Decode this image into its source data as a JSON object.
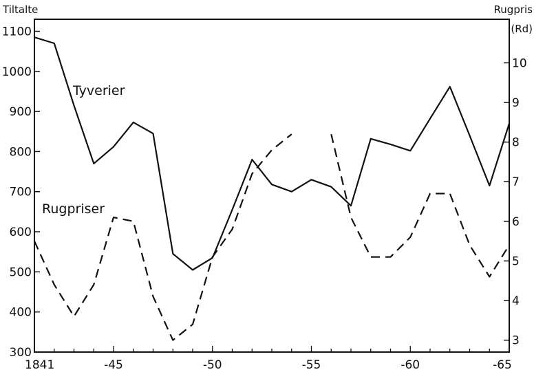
{
  "chart_data": {
    "type": "line",
    "title": "",
    "left_axis": {
      "label": "Tiltalte",
      "ylim": [
        300,
        1130
      ],
      "ticks": [
        300,
        400,
        500,
        600,
        700,
        800,
        900,
        1000,
        1100
      ]
    },
    "right_axis": {
      "label": "Rugpris",
      "unit": "(Rd)",
      "ylim": [
        2.7,
        11.1
      ],
      "ticks": [
        3,
        4,
        5,
        6,
        7,
        8,
        9,
        10
      ]
    },
    "x_axis": {
      "xlim": [
        1841,
        1865
      ],
      "ticks": [
        {
          "value": 1841,
          "label": "1841"
        },
        {
          "value": 1845,
          "label": "-45"
        },
        {
          "value": 1850,
          "label": "-50"
        },
        {
          "value": 1855,
          "label": "-55"
        },
        {
          "value": 1860,
          "label": "-60"
        },
        {
          "value": 1865,
          "label": "-65"
        }
      ]
    },
    "series": [
      {
        "name": "Tyverier",
        "axis": "left",
        "style": "solid",
        "x": [
          1841,
          1842,
          1843,
          1844,
          1845,
          1846,
          1847,
          1848,
          1849,
          1850,
          1851,
          1852,
          1853,
          1854,
          1855,
          1856,
          1857,
          1858,
          1859,
          1860,
          1861,
          1862,
          1863,
          1864,
          1865
        ],
        "values": [
          1085,
          1070,
          915,
          770,
          812,
          873,
          845,
          545,
          505,
          535,
          655,
          780,
          718,
          700,
          730,
          712,
          665,
          832,
          818,
          802,
          882,
          962,
          840,
          715,
          870
        ]
      },
      {
        "name": "Rugpriser",
        "axis": "right",
        "style": "dashed",
        "segments": [
          {
            "x": [
              1841,
              1842,
              1843,
              1844,
              1845,
              1846,
              1847,
              1848,
              1849,
              1850,
              1851,
              1852,
              1853,
              1854
            ],
            "values": [
              5.5,
              4.4,
              3.6,
              4.4,
              6.1,
              6.0,
              4.1,
              3.0,
              3.4,
              5.1,
              5.8,
              7.2,
              7.8,
              8.2
            ]
          },
          {
            "x": [
              1856,
              1857,
              1858,
              1859,
              1860,
              1861,
              1862,
              1863,
              1864,
              1865
            ],
            "values": [
              8.2,
              6.1,
              5.1,
              5.1,
              5.6,
              6.7,
              6.7,
              5.4,
              4.6,
              5.4
            ]
          }
        ]
      }
    ]
  }
}
